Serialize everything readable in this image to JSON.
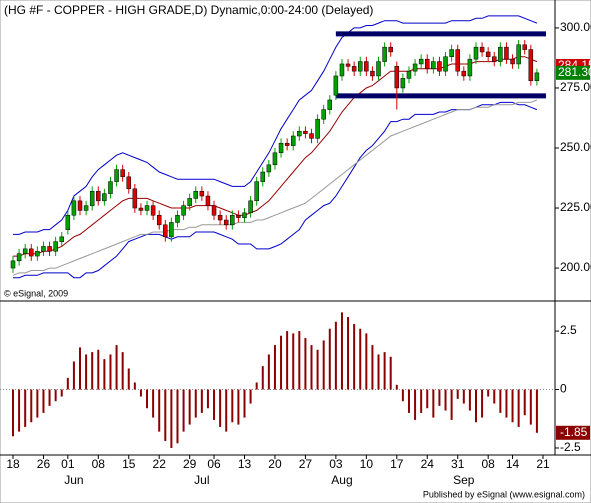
{
  "chart_data": [
    {
      "type": "candlestick",
      "title": "(HG #F - COPPER - HIGH GRADE,D) Dynamic,0:00-24:00 (Delayed)",
      "copyright": "© eSignal, 2009",
      "ylim": [
        186.7,
        310.8
      ],
      "yticks": [
        {
          "value": 200,
          "label": "200.00"
        },
        {
          "value": 225,
          "label": "225.00"
        },
        {
          "value": 250,
          "label": "250.00"
        },
        {
          "value": 275,
          "label": "275.00"
        },
        {
          "value": 300,
          "label": "300.00"
        }
      ],
      "up_color": "#00a000",
      "down_color": "#dd0000",
      "open": [
        200,
        203,
        206,
        208,
        205,
        207,
        209,
        207,
        211,
        216,
        222,
        228,
        224,
        226,
        232,
        228,
        231,
        236,
        241,
        238,
        233,
        225,
        224,
        226,
        222,
        218,
        213,
        219,
        222,
        226,
        229,
        232,
        230,
        226,
        222,
        220,
        218,
        222,
        221,
        223,
        228,
        236,
        240,
        243,
        248,
        252,
        251,
        255,
        257,
        256,
        254,
        262,
        266,
        272,
        280,
        285,
        284,
        282,
        286,
        282,
        280,
        286,
        292,
        284,
        275,
        279,
        282,
        285,
        287,
        283,
        286,
        282,
        288,
        291,
        282,
        280,
        287,
        292,
        290,
        288,
        286,
        292,
        287,
        285,
        293,
        291,
        278,
        null
      ],
      "high": [
        205,
        208,
        210,
        210,
        209,
        211,
        211,
        213,
        215,
        224,
        230,
        230,
        228,
        234,
        234,
        233,
        238,
        243,
        243,
        240,
        235,
        227,
        228,
        228,
        224,
        220,
        221,
        224,
        228,
        231,
        234,
        234,
        232,
        228,
        224,
        222,
        224,
        224,
        225,
        230,
        238,
        242,
        245,
        250,
        254,
        254,
        257,
        259,
        259,
        258,
        264,
        268,
        272,
        282,
        287,
        287,
        286,
        288,
        288,
        284,
        288,
        294,
        294,
        286,
        281,
        284,
        287,
        289,
        289,
        288,
        288,
        290,
        293,
        293,
        284,
        289,
        294,
        294,
        292,
        290,
        294,
        294,
        289,
        295,
        295,
        293,
        283,
        null
      ],
      "low": [
        198,
        201,
        204,
        203,
        203,
        205,
        205,
        205,
        209,
        214,
        220,
        222,
        222,
        224,
        226,
        226,
        229,
        234,
        236,
        231,
        223,
        222,
        222,
        220,
        216,
        211,
        211,
        217,
        220,
        224,
        227,
        228,
        224,
        220,
        218,
        216,
        216,
        219,
        219,
        221,
        226,
        234,
        238,
        241,
        246,
        249,
        249,
        253,
        254,
        252,
        252,
        260,
        264,
        270,
        278,
        282,
        280,
        280,
        280,
        278,
        278,
        284,
        288,
        266,
        273,
        277,
        280,
        283,
        281,
        281,
        280,
        280,
        286,
        280,
        278,
        278,
        285,
        288,
        286,
        284,
        284,
        285,
        283,
        283,
        289,
        276,
        276,
        null
      ],
      "close": [
        203,
        206,
        208,
        205,
        207,
        209,
        207,
        211,
        213,
        222,
        228,
        224,
        226,
        232,
        228,
        231,
        236,
        241,
        238,
        233,
        225,
        224,
        226,
        222,
        218,
        213,
        219,
        222,
        226,
        229,
        232,
        230,
        226,
        222,
        220,
        218,
        222,
        221,
        223,
        228,
        236,
        240,
        243,
        248,
        252,
        251,
        255,
        257,
        256,
        254,
        262,
        266,
        270,
        280,
        285,
        284,
        282,
        286,
        282,
        280,
        286,
        292,
        290,
        275,
        279,
        282,
        285,
        287,
        283,
        286,
        282,
        288,
        291,
        282,
        280,
        287,
        292,
        290,
        288,
        286,
        292,
        287,
        285,
        293,
        291,
        278,
        281.3,
        null
      ],
      "lines": [
        {
          "color": "#0000cc",
          "values": [
            214,
            214,
            215,
            215,
            215,
            216,
            216,
            218,
            220,
            224,
            230,
            232,
            234,
            238,
            241,
            243,
            245,
            247,
            248,
            247,
            246,
            245,
            244,
            242,
            240,
            239,
            238,
            237,
            237,
            237,
            237,
            237,
            237,
            237,
            236,
            235,
            234,
            234,
            234,
            236,
            240,
            244,
            248,
            253,
            258,
            262,
            266,
            270,
            272,
            274,
            278,
            282,
            287,
            292,
            296,
            298,
            300,
            300,
            301,
            301,
            302,
            303,
            303,
            303,
            302,
            302,
            302,
            302,
            302,
            302,
            302,
            302,
            303,
            303,
            303,
            303,
            304,
            304,
            305,
            305,
            305,
            305,
            305,
            305,
            304,
            303,
            302,
            null
          ]
        },
        {
          "color": "#0000cc",
          "values": [
            196,
            196,
            197,
            197,
            197,
            198,
            198,
            198,
            198,
            198,
            196,
            196,
            198,
            198,
            199,
            201,
            203,
            205,
            208,
            211,
            212,
            213,
            214,
            214,
            214,
            213,
            212,
            213,
            213,
            213,
            215,
            215,
            215,
            215,
            214,
            213,
            212,
            210,
            210,
            210,
            208,
            208,
            208,
            209,
            210,
            212,
            214,
            216,
            220,
            222,
            224,
            226,
            227,
            230,
            234,
            238,
            242,
            246,
            249,
            251,
            254,
            257,
            261,
            261,
            262,
            262,
            264,
            264,
            264,
            264,
            265,
            265,
            266,
            266,
            266,
            266,
            267,
            268,
            268,
            268,
            269,
            269,
            269,
            268,
            268,
            267,
            266,
            null
          ]
        },
        {
          "color": "#999999",
          "values": [
            197,
            198,
            198,
            199,
            199,
            199,
            200,
            200,
            201,
            202,
            203,
            204,
            205,
            206,
            207,
            208,
            209,
            210,
            211,
            212,
            213,
            214,
            214,
            215,
            215,
            215,
            216,
            216,
            216,
            217,
            217,
            218,
            218,
            218,
            218,
            218,
            218,
            219,
            219,
            219,
            220,
            220,
            221,
            222,
            223,
            224,
            225,
            226,
            227,
            229,
            231,
            233,
            235,
            237,
            239,
            241,
            243,
            245,
            247,
            249,
            251,
            253,
            255,
            256,
            257,
            258,
            259,
            260,
            261,
            262,
            263,
            264,
            265,
            266,
            266,
            266,
            267,
            267,
            267,
            268,
            268,
            268,
            268,
            269,
            269,
            269,
            270,
            null
          ]
        },
        {
          "color": "#990000",
          "values": [
            205,
            205,
            206,
            206,
            206,
            207,
            207,
            208,
            209,
            211,
            213,
            214,
            216,
            218,
            220,
            222,
            224,
            226,
            228,
            229,
            229,
            229,
            229,
            228,
            227,
            226,
            225,
            225,
            225,
            225,
            226,
            226,
            226,
            226,
            225,
            224,
            223,
            222,
            222,
            223,
            224,
            226,
            228,
            231,
            234,
            237,
            240,
            243,
            246,
            248,
            251,
            254,
            257,
            261,
            265,
            268,
            271,
            273,
            275,
            276,
            278,
            280,
            282,
            282,
            282,
            282,
            283,
            283,
            283,
            283,
            283,
            284,
            285,
            285,
            285,
            285,
            286,
            286,
            286,
            286,
            287,
            287,
            287,
            288,
            288,
            287,
            286,
            null
          ]
        }
      ],
      "hlines": [
        {
          "value": 297.5,
          "color": "#000066"
        },
        {
          "value": 271.7,
          "color": "#000066"
        }
      ],
      "markers": [
        {
          "value": 284.15,
          "label": "284.15",
          "color": "#cc0000"
        },
        {
          "value": 281.3,
          "label": "281.30",
          "color": "#008000"
        }
      ]
    },
    {
      "type": "bar",
      "color": "#8b0000",
      "ylim": [
        -2.8,
        3.7
      ],
      "yticks": [
        -2.5,
        0,
        2.5
      ],
      "categories": [
        "18",
        null,
        null,
        null,
        null,
        "26",
        null,
        null,
        null,
        "01",
        null,
        null,
        null,
        null,
        "08",
        null,
        null,
        null,
        null,
        "15",
        null,
        null,
        null,
        null,
        "22",
        null,
        null,
        null,
        null,
        "29",
        null,
        null,
        null,
        "06",
        null,
        null,
        null,
        null,
        "13",
        null,
        null,
        null,
        null,
        "20",
        null,
        null,
        null,
        null,
        "27",
        null,
        null,
        null,
        null,
        "03",
        null,
        null,
        null,
        null,
        "10",
        null,
        null,
        null,
        null,
        "17",
        null,
        null,
        null,
        null,
        "24",
        null,
        null,
        null,
        null,
        "31",
        null,
        null,
        null,
        null,
        "08",
        null,
        null,
        null,
        "14",
        null,
        null,
        null,
        null,
        "21"
      ],
      "months": [
        null,
        null,
        null,
        null,
        null,
        null,
        null,
        null,
        null,
        null,
        "Jun",
        null,
        null,
        null,
        null,
        null,
        null,
        null,
        null,
        null,
        null,
        null,
        null,
        null,
        null,
        null,
        null,
        null,
        null,
        null,
        null,
        "Jul",
        null,
        null,
        null,
        null,
        null,
        null,
        null,
        null,
        null,
        null,
        null,
        null,
        null,
        null,
        null,
        null,
        null,
        null,
        null,
        null,
        null,
        null,
        "Aug",
        null,
        null,
        null,
        null,
        null,
        null,
        null,
        null,
        null,
        null,
        null,
        null,
        null,
        null,
        null,
        null,
        null,
        null,
        null,
        "Sep",
        null,
        null,
        null,
        null,
        null,
        null,
        null,
        null,
        null,
        null,
        null,
        null,
        null
      ],
      "values": [
        -2.0,
        -1.8,
        -1.6,
        -1.4,
        -1.2,
        -1.0,
        -0.7,
        -0.5,
        -0.3,
        0.5,
        1.2,
        1.8,
        1.5,
        1.6,
        1.7,
        1.3,
        1.5,
        1.9,
        1.6,
        0.9,
        0.3,
        -0.3,
        -0.8,
        -1.2,
        -1.8,
        -2.2,
        -2.5,
        -2.3,
        -1.8,
        -1.5,
        -1.2,
        -1.0,
        -0.8,
        -1.3,
        -1.6,
        -1.8,
        -1.4,
        -1.5,
        -1.2,
        -0.6,
        0.3,
        1.0,
        1.5,
        1.9,
        2.3,
        2.5,
        2.4,
        2.5,
        2.2,
        1.9,
        1.7,
        2.1,
        2.6,
        2.9,
        3.3,
        3.1,
        2.8,
        2.6,
        2.4,
        1.9,
        1.5,
        1.6,
        1.4,
        0.2,
        -0.5,
        -1.0,
        -1.3,
        -1.0,
        -0.8,
        -1.2,
        -0.7,
        -0.9,
        -1.3,
        -0.4,
        -0.6,
        -0.9,
        -1.4,
        -1.2,
        -0.3,
        -0.6,
        -1.0,
        -1.2,
        -1.4,
        -1.6,
        -1.1,
        -1.5,
        -1.85,
        null
      ],
      "footer": "Published by eSignal (www.esignal.com)"
    }
  ]
}
